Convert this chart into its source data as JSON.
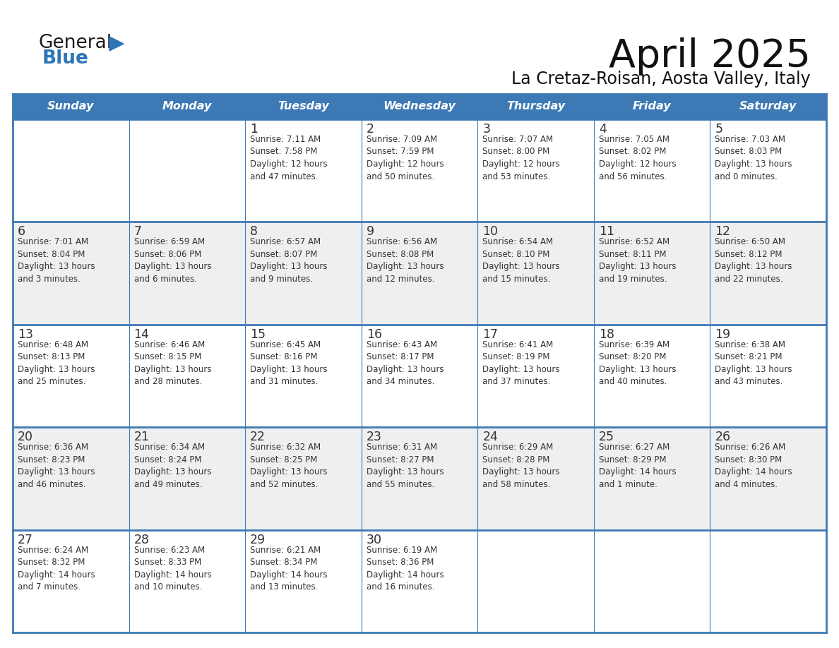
{
  "title": "April 2025",
  "subtitle": "La Cretaz-Roisan, Aosta Valley, Italy",
  "header_color": "#3D7AB5",
  "header_text_color": "#FFFFFF",
  "cell_bg_white": "#FFFFFF",
  "cell_bg_grey": "#EFEFEF",
  "border_color": "#3D7AB5",
  "text_color": "#333333",
  "days_of_week": [
    "Sunday",
    "Monday",
    "Tuesday",
    "Wednesday",
    "Thursday",
    "Friday",
    "Saturday"
  ],
  "weeks": [
    [
      {
        "day": "",
        "info": ""
      },
      {
        "day": "",
        "info": ""
      },
      {
        "day": "1",
        "info": "Sunrise: 7:11 AM\nSunset: 7:58 PM\nDaylight: 12 hours\nand 47 minutes."
      },
      {
        "day": "2",
        "info": "Sunrise: 7:09 AM\nSunset: 7:59 PM\nDaylight: 12 hours\nand 50 minutes."
      },
      {
        "day": "3",
        "info": "Sunrise: 7:07 AM\nSunset: 8:00 PM\nDaylight: 12 hours\nand 53 minutes."
      },
      {
        "day": "4",
        "info": "Sunrise: 7:05 AM\nSunset: 8:02 PM\nDaylight: 12 hours\nand 56 minutes."
      },
      {
        "day": "5",
        "info": "Sunrise: 7:03 AM\nSunset: 8:03 PM\nDaylight: 13 hours\nand 0 minutes."
      }
    ],
    [
      {
        "day": "6",
        "info": "Sunrise: 7:01 AM\nSunset: 8:04 PM\nDaylight: 13 hours\nand 3 minutes."
      },
      {
        "day": "7",
        "info": "Sunrise: 6:59 AM\nSunset: 8:06 PM\nDaylight: 13 hours\nand 6 minutes."
      },
      {
        "day": "8",
        "info": "Sunrise: 6:57 AM\nSunset: 8:07 PM\nDaylight: 13 hours\nand 9 minutes."
      },
      {
        "day": "9",
        "info": "Sunrise: 6:56 AM\nSunset: 8:08 PM\nDaylight: 13 hours\nand 12 minutes."
      },
      {
        "day": "10",
        "info": "Sunrise: 6:54 AM\nSunset: 8:10 PM\nDaylight: 13 hours\nand 15 minutes."
      },
      {
        "day": "11",
        "info": "Sunrise: 6:52 AM\nSunset: 8:11 PM\nDaylight: 13 hours\nand 19 minutes."
      },
      {
        "day": "12",
        "info": "Sunrise: 6:50 AM\nSunset: 8:12 PM\nDaylight: 13 hours\nand 22 minutes."
      }
    ],
    [
      {
        "day": "13",
        "info": "Sunrise: 6:48 AM\nSunset: 8:13 PM\nDaylight: 13 hours\nand 25 minutes."
      },
      {
        "day": "14",
        "info": "Sunrise: 6:46 AM\nSunset: 8:15 PM\nDaylight: 13 hours\nand 28 minutes."
      },
      {
        "day": "15",
        "info": "Sunrise: 6:45 AM\nSunset: 8:16 PM\nDaylight: 13 hours\nand 31 minutes."
      },
      {
        "day": "16",
        "info": "Sunrise: 6:43 AM\nSunset: 8:17 PM\nDaylight: 13 hours\nand 34 minutes."
      },
      {
        "day": "17",
        "info": "Sunrise: 6:41 AM\nSunset: 8:19 PM\nDaylight: 13 hours\nand 37 minutes."
      },
      {
        "day": "18",
        "info": "Sunrise: 6:39 AM\nSunset: 8:20 PM\nDaylight: 13 hours\nand 40 minutes."
      },
      {
        "day": "19",
        "info": "Sunrise: 6:38 AM\nSunset: 8:21 PM\nDaylight: 13 hours\nand 43 minutes."
      }
    ],
    [
      {
        "day": "20",
        "info": "Sunrise: 6:36 AM\nSunset: 8:23 PM\nDaylight: 13 hours\nand 46 minutes."
      },
      {
        "day": "21",
        "info": "Sunrise: 6:34 AM\nSunset: 8:24 PM\nDaylight: 13 hours\nand 49 minutes."
      },
      {
        "day": "22",
        "info": "Sunrise: 6:32 AM\nSunset: 8:25 PM\nDaylight: 13 hours\nand 52 minutes."
      },
      {
        "day": "23",
        "info": "Sunrise: 6:31 AM\nSunset: 8:27 PM\nDaylight: 13 hours\nand 55 minutes."
      },
      {
        "day": "24",
        "info": "Sunrise: 6:29 AM\nSunset: 8:28 PM\nDaylight: 13 hours\nand 58 minutes."
      },
      {
        "day": "25",
        "info": "Sunrise: 6:27 AM\nSunset: 8:29 PM\nDaylight: 14 hours\nand 1 minute."
      },
      {
        "day": "26",
        "info": "Sunrise: 6:26 AM\nSunset: 8:30 PM\nDaylight: 14 hours\nand 4 minutes."
      }
    ],
    [
      {
        "day": "27",
        "info": "Sunrise: 6:24 AM\nSunset: 8:32 PM\nDaylight: 14 hours\nand 7 minutes."
      },
      {
        "day": "28",
        "info": "Sunrise: 6:23 AM\nSunset: 8:33 PM\nDaylight: 14 hours\nand 10 minutes."
      },
      {
        "day": "29",
        "info": "Sunrise: 6:21 AM\nSunset: 8:34 PM\nDaylight: 14 hours\nand 13 minutes."
      },
      {
        "day": "30",
        "info": "Sunrise: 6:19 AM\nSunset: 8:36 PM\nDaylight: 14 hours\nand 16 minutes."
      },
      {
        "day": "",
        "info": ""
      },
      {
        "day": "",
        "info": ""
      },
      {
        "day": "",
        "info": ""
      }
    ]
  ]
}
